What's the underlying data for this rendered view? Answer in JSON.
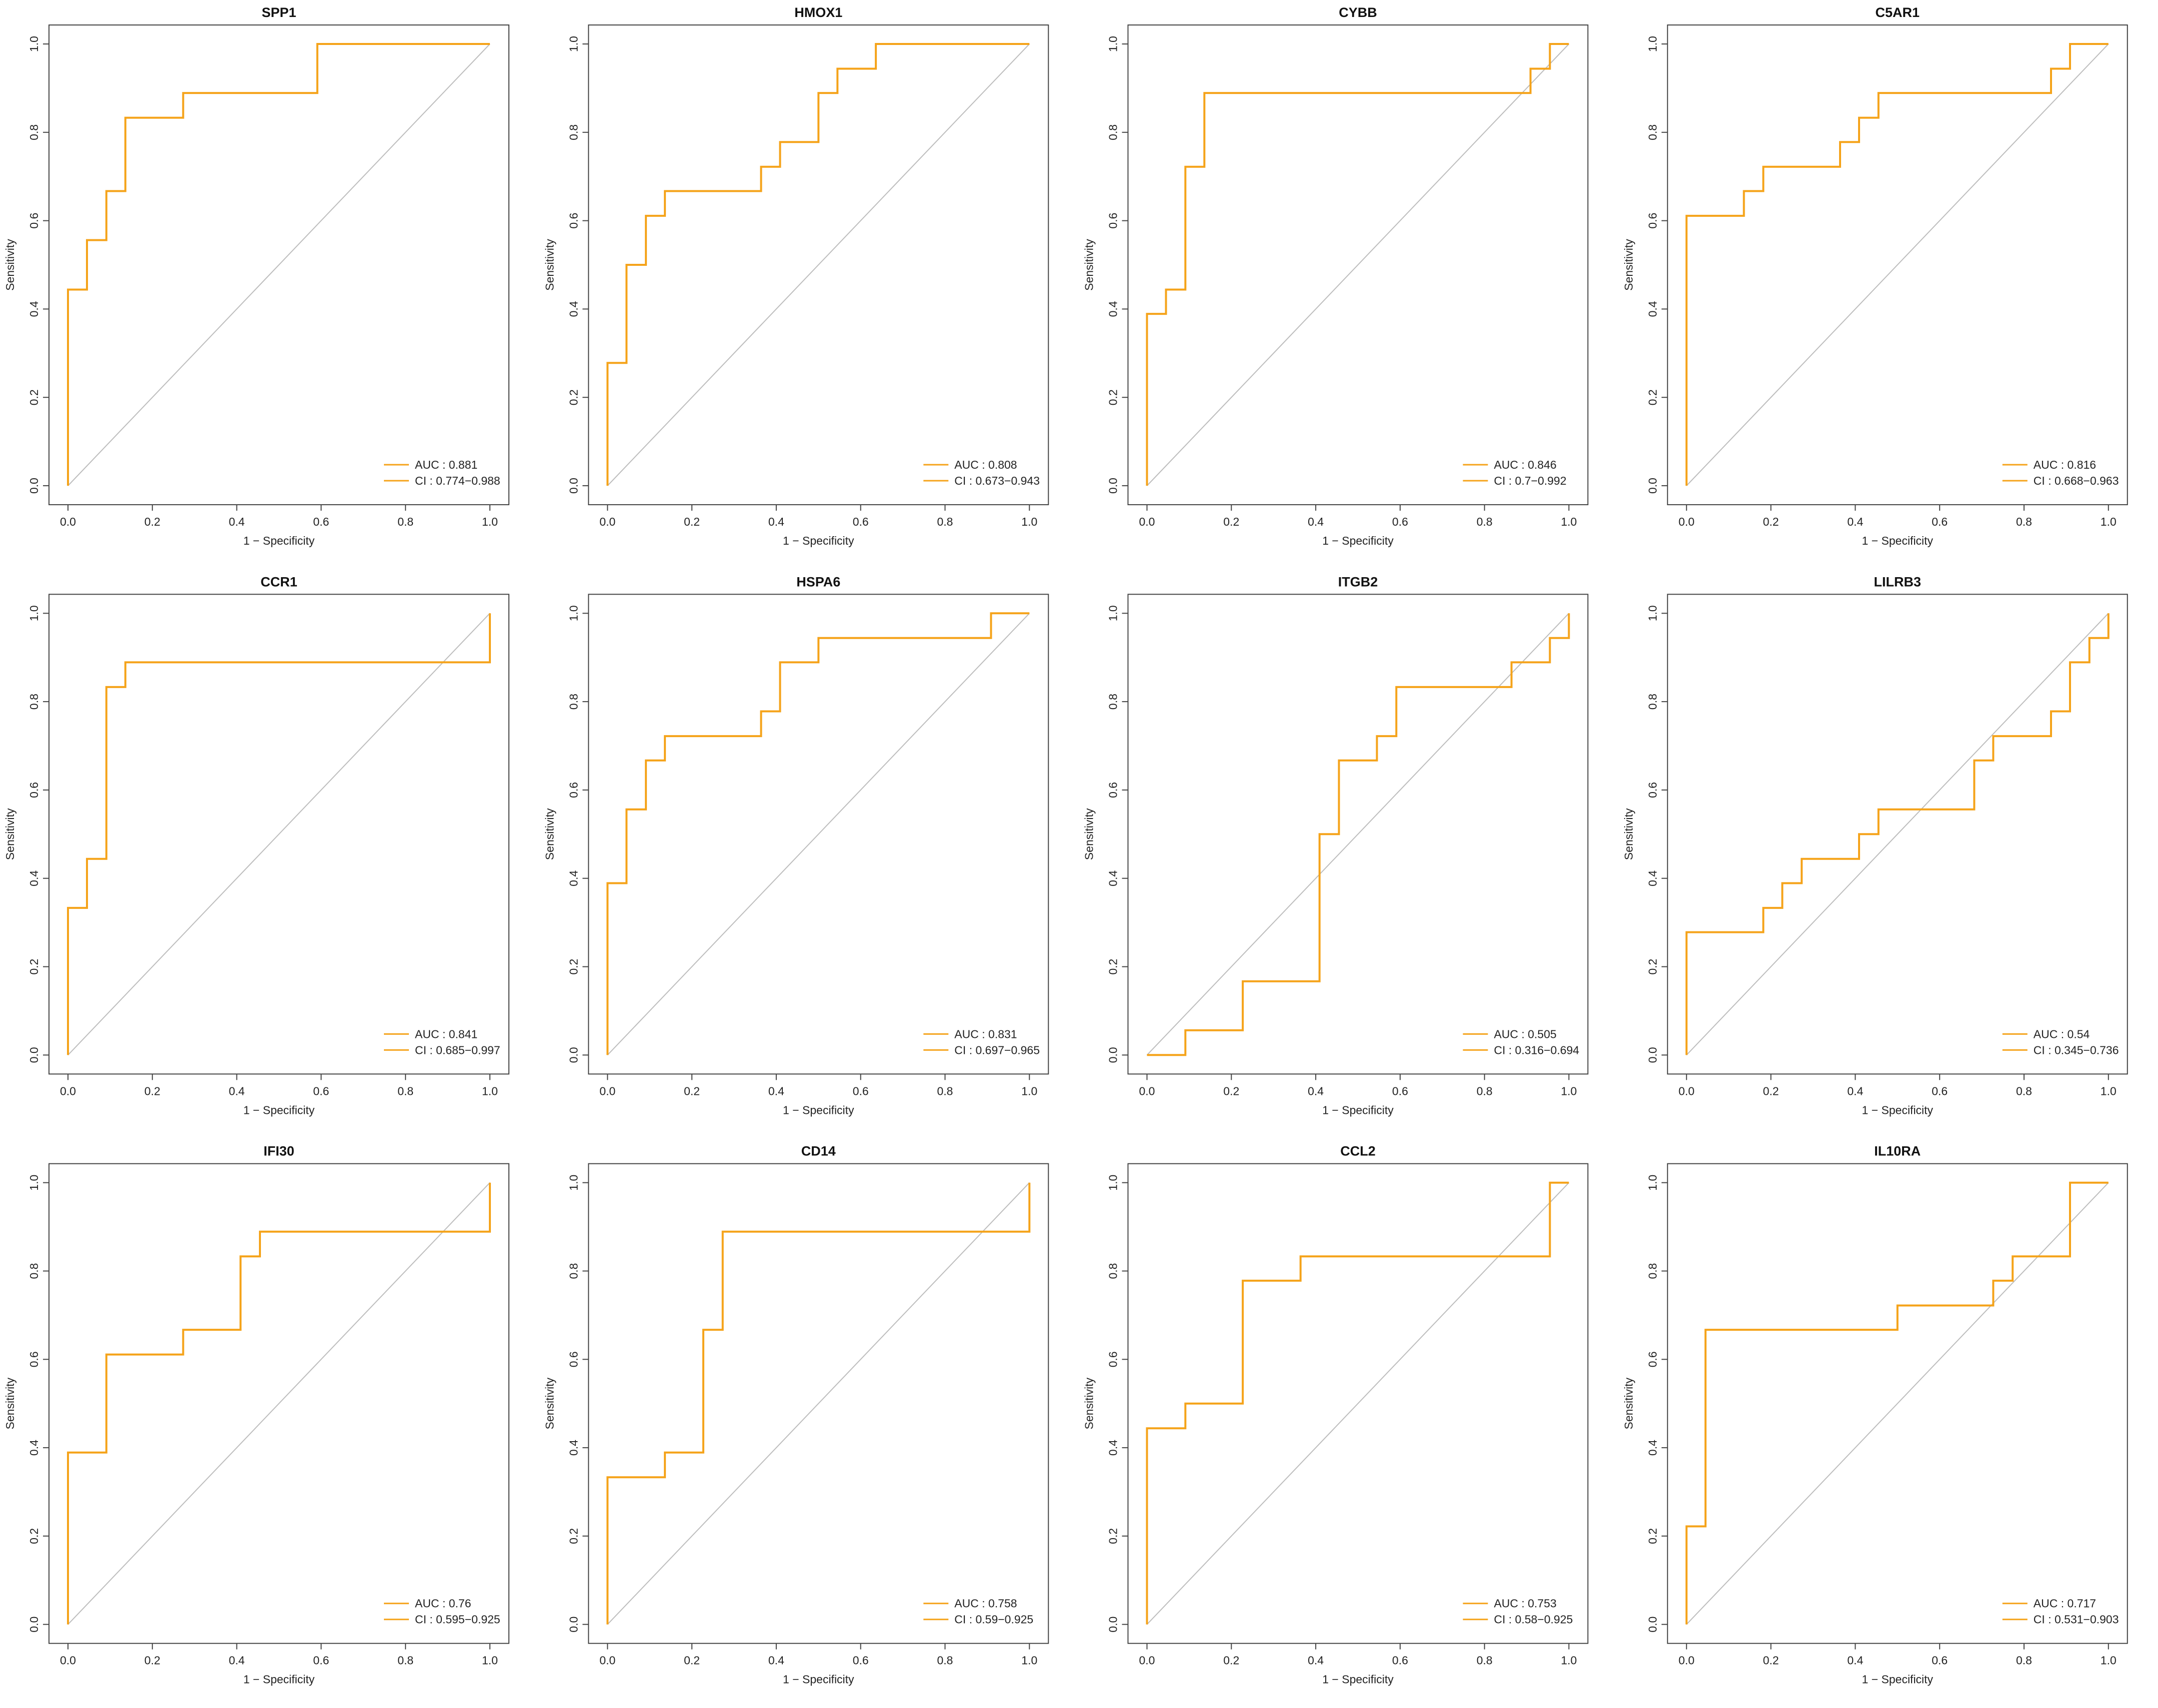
{
  "common": {
    "xlabel": "1 − Specificity",
    "ylabel": "Sensitivity",
    "xticks": [
      "0.0",
      "0.2",
      "0.4",
      "0.6",
      "0.8",
      "1.0"
    ],
    "yticks": [
      "0.0",
      "0.2",
      "0.4",
      "0.6",
      "0.8",
      "1.0"
    ],
    "curve_color": "#f5a31a",
    "diagonal_color": "#bdbdbd",
    "auc_prefix": "AUC : ",
    "ci_prefix": "CI : "
  },
  "chart_data": [
    {
      "type": "line",
      "title": "SPP1",
      "auc": "0.881",
      "ci": "0.774−0.988",
      "xlim": [
        0,
        1
      ],
      "ylim": [
        0,
        1
      ],
      "legend": "bottom-right",
      "grid": false,
      "x": [
        0,
        0,
        0.045,
        0.045,
        0.091,
        0.091,
        0.136,
        0.136,
        0.273,
        0.273,
        0.591,
        0.591,
        1.0
      ],
      "y": [
        0,
        0.444,
        0.444,
        0.556,
        0.556,
        0.667,
        0.667,
        0.833,
        0.833,
        0.889,
        0.889,
        1.0,
        1.0
      ]
    },
    {
      "type": "line",
      "title": "HMOX1",
      "auc": "0.808",
      "ci": "0.673−0.943",
      "xlim": [
        0,
        1
      ],
      "ylim": [
        0,
        1
      ],
      "legend": "bottom-right",
      "grid": false,
      "x": [
        0,
        0,
        0.045,
        0.045,
        0.091,
        0.091,
        0.136,
        0.136,
        0.364,
        0.364,
        0.409,
        0.409,
        0.5,
        0.5,
        0.545,
        0.545,
        0.636,
        0.636,
        1.0
      ],
      "y": [
        0,
        0.278,
        0.278,
        0.5,
        0.5,
        0.611,
        0.611,
        0.667,
        0.667,
        0.722,
        0.722,
        0.778,
        0.778,
        0.889,
        0.889,
        0.944,
        0.944,
        1.0,
        1.0
      ]
    },
    {
      "type": "line",
      "title": "CYBB",
      "auc": "0.846",
      "ci": "0.7−0.992",
      "xlim": [
        0,
        1
      ],
      "ylim": [
        0,
        1
      ],
      "legend": "bottom-right",
      "grid": false,
      "x": [
        0,
        0,
        0.045,
        0.045,
        0.091,
        0.091,
        0.136,
        0.136,
        0.909,
        0.909,
        0.955,
        0.955,
        1.0
      ],
      "y": [
        0,
        0.389,
        0.389,
        0.444,
        0.444,
        0.722,
        0.722,
        0.889,
        0.889,
        0.944,
        0.944,
        1.0,
        1.0
      ]
    },
    {
      "type": "line",
      "title": "C5AR1",
      "auc": "0.816",
      "ci": "0.668−0.963",
      "xlim": [
        0,
        1
      ],
      "ylim": [
        0,
        1
      ],
      "legend": "bottom-right",
      "grid": false,
      "x": [
        0,
        0,
        0.136,
        0.136,
        0.182,
        0.182,
        0.364,
        0.364,
        0.409,
        0.409,
        0.455,
        0.455,
        0.864,
        0.864,
        0.909,
        0.909,
        1.0
      ],
      "y": [
        0,
        0.611,
        0.611,
        0.667,
        0.667,
        0.722,
        0.722,
        0.778,
        0.778,
        0.833,
        0.833,
        0.889,
        0.889,
        0.944,
        0.944,
        1.0,
        1.0
      ]
    },
    {
      "type": "line",
      "title": "CCR1",
      "auc": "0.841",
      "ci": "0.685−0.997",
      "xlim": [
        0,
        1
      ],
      "ylim": [
        0,
        1
      ],
      "legend": "bottom-right",
      "grid": false,
      "x": [
        0,
        0,
        0.045,
        0.045,
        0.091,
        0.091,
        0.136,
        0.136,
        1.0,
        1.0
      ],
      "y": [
        0,
        0.333,
        0.333,
        0.444,
        0.444,
        0.833,
        0.833,
        0.889,
        0.889,
        1.0
      ]
    },
    {
      "type": "line",
      "title": "HSPA6",
      "auc": "0.831",
      "ci": "0.697−0.965",
      "xlim": [
        0,
        1
      ],
      "ylim": [
        0,
        1
      ],
      "legend": "bottom-right",
      "grid": false,
      "x": [
        0,
        0,
        0.045,
        0.045,
        0.091,
        0.091,
        0.136,
        0.136,
        0.364,
        0.364,
        0.409,
        0.409,
        0.5,
        0.5,
        0.909,
        0.909,
        1.0
      ],
      "y": [
        0,
        0.389,
        0.389,
        0.556,
        0.556,
        0.667,
        0.667,
        0.722,
        0.722,
        0.778,
        0.778,
        0.889,
        0.889,
        0.944,
        0.944,
        1.0,
        1.0
      ]
    },
    {
      "type": "line",
      "title": "ITGB2",
      "auc": "0.505",
      "ci": "0.316−0.694",
      "xlim": [
        0,
        1
      ],
      "ylim": [
        0,
        1
      ],
      "legend": "bottom-right",
      "grid": false,
      "x": [
        0,
        0.091,
        0.091,
        0.227,
        0.227,
        0.409,
        0.409,
        0.455,
        0.455,
        0.545,
        0.545,
        0.591,
        0.591,
        0.864,
        0.864,
        0.955,
        0.955,
        1.0,
        1.0
      ],
      "y": [
        0,
        0,
        0.056,
        0.056,
        0.167,
        0.167,
        0.5,
        0.5,
        0.667,
        0.667,
        0.722,
        0.722,
        0.833,
        0.833,
        0.889,
        0.889,
        0.944,
        0.944,
        1.0
      ]
    },
    {
      "type": "line",
      "title": "LILRB3",
      "auc": "0.54",
      "ci": "0.345−0.736",
      "xlim": [
        0,
        1
      ],
      "ylim": [
        0,
        1
      ],
      "legend": "bottom-right",
      "grid": false,
      "x": [
        0,
        0,
        0.182,
        0.182,
        0.227,
        0.227,
        0.273,
        0.273,
        0.409,
        0.409,
        0.455,
        0.455,
        0.682,
        0.682,
        0.727,
        0.727,
        0.864,
        0.864,
        0.909,
        0.909,
        0.955,
        0.955,
        1.0,
        1.0
      ],
      "y": [
        0,
        0.278,
        0.278,
        0.333,
        0.333,
        0.389,
        0.389,
        0.444,
        0.444,
        0.5,
        0.5,
        0.556,
        0.556,
        0.667,
        0.667,
        0.722,
        0.722,
        0.778,
        0.778,
        0.889,
        0.889,
        0.944,
        0.944,
        1.0
      ]
    },
    {
      "type": "line",
      "title": "IFI30",
      "auc": "0.76",
      "ci": "0.595−0.925",
      "xlim": [
        0,
        1
      ],
      "ylim": [
        0,
        1
      ],
      "legend": "bottom-right",
      "grid": false,
      "x": [
        0,
        0,
        0.091,
        0.091,
        0.273,
        0.273,
        0.409,
        0.409,
        0.455,
        0.455,
        1.0,
        1.0
      ],
      "y": [
        0,
        0.389,
        0.389,
        0.611,
        0.611,
        0.667,
        0.667,
        0.833,
        0.833,
        0.889,
        0.889,
        1.0
      ]
    },
    {
      "type": "line",
      "title": "CD14",
      "auc": "0.758",
      "ci": "0.59−0.925",
      "xlim": [
        0,
        1
      ],
      "ylim": [
        0,
        1
      ],
      "legend": "bottom-right",
      "grid": false,
      "x": [
        0,
        0,
        0.136,
        0.136,
        0.227,
        0.227,
        0.273,
        0.273,
        1.0,
        1.0
      ],
      "y": [
        0,
        0.333,
        0.333,
        0.389,
        0.389,
        0.667,
        0.667,
        0.889,
        0.889,
        1.0
      ]
    },
    {
      "type": "line",
      "title": "CCL2",
      "auc": "0.753",
      "ci": "0.58−0.925",
      "xlim": [
        0,
        1
      ],
      "ylim": [
        0,
        1
      ],
      "legend": "bottom-right",
      "grid": false,
      "x": [
        0,
        0,
        0.091,
        0.091,
        0.227,
        0.227,
        0.364,
        0.364,
        0.955,
        0.955,
        1.0
      ],
      "y": [
        0,
        0.444,
        0.444,
        0.5,
        0.5,
        0.778,
        0.778,
        0.833,
        0.833,
        1.0,
        1.0
      ]
    },
    {
      "type": "line",
      "title": "IL10RA",
      "auc": "0.717",
      "ci": "0.531−0.903",
      "xlim": [
        0,
        1
      ],
      "ylim": [
        0,
        1
      ],
      "legend": "bottom-right",
      "grid": false,
      "x": [
        0,
        0,
        0.045,
        0.045,
        0.5,
        0.5,
        0.727,
        0.727,
        0.773,
        0.773,
        0.909,
        0.909,
        1.0
      ],
      "y": [
        0,
        0.222,
        0.222,
        0.667,
        0.667,
        0.722,
        0.722,
        0.778,
        0.778,
        0.833,
        0.833,
        1.0,
        1.0
      ]
    }
  ]
}
